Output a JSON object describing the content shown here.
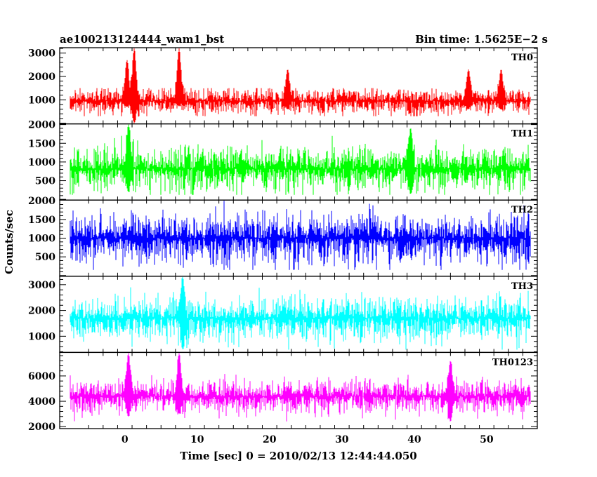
{
  "header": {
    "left": "ae100213124444_wam1_bst",
    "right": "Bin time: 1.5625E−2 s"
  },
  "chart_data": {
    "type": "line",
    "xlabel": "Time [sec] 0 = 2010/02/13 12:44:44.050",
    "ylabel": "Counts/sec",
    "xlim": [
      -9,
      57
    ],
    "data_x_range": [
      -7.5,
      56.0
    ],
    "xticks": [
      0,
      10,
      20,
      30,
      40,
      50
    ],
    "grid": false,
    "panels": [
      {
        "label": "TH0",
        "color": "#ff0000",
        "ylim": [
          0,
          3200
        ],
        "yticks": [
          1000,
          2000,
          3000
        ],
        "baseline": 950,
        "noise": 280,
        "low": 300,
        "high": 1500,
        "features": [
          {
            "x": 0.3,
            "low": 700,
            "high": 2700
          },
          {
            "x": 1.3,
            "low": 0,
            "high": 3200
          },
          {
            "x": 7.5,
            "low": 750,
            "high": 3200
          },
          {
            "x": 22.5,
            "low": 600,
            "high": 2300
          },
          {
            "x": 47.5,
            "low": 600,
            "high": 2300
          },
          {
            "x": 52.0,
            "low": 600,
            "high": 2300
          }
        ]
      },
      {
        "label": "TH1",
        "color": "#00ff00",
        "ylim": [
          0,
          2000
        ],
        "yticks": [
          500,
          1000,
          1500,
          2000
        ],
        "baseline": 820,
        "noise": 300,
        "low": 120,
        "high": 1700,
        "features": [
          {
            "x": 0.5,
            "low": 200,
            "high": 2000
          },
          {
            "x": 39.5,
            "low": 150,
            "high": 1900
          }
        ]
      },
      {
        "label": "TH2",
        "color": "#0000ff",
        "ylim": [
          0,
          2000
        ],
        "yticks": [
          500,
          1000,
          1500,
          2000
        ],
        "baseline": 1000,
        "noise": 330,
        "low": 150,
        "high": 2000,
        "features": []
      },
      {
        "label": "TH3",
        "color": "#00ffff",
        "ylim": [
          400,
          3300
        ],
        "yticks": [
          1000,
          2000,
          3000
        ],
        "baseline": 1700,
        "noise": 420,
        "low": 480,
        "high": 3100,
        "features": [
          {
            "x": 8.0,
            "low": 500,
            "high": 3300
          }
        ]
      },
      {
        "label": "TH0123",
        "color": "#ff00ff",
        "ylim": [
          1900,
          7800
        ],
        "yticks": [
          2000,
          4000,
          6000
        ],
        "baseline": 4400,
        "noise": 650,
        "low": 2300,
        "high": 6800,
        "features": [
          {
            "x": 0.5,
            "low": 2800,
            "high": 7800
          },
          {
            "x": 7.5,
            "low": 3000,
            "high": 7800
          },
          {
            "x": 45.0,
            "low": 2400,
            "high": 7200
          }
        ]
      }
    ]
  }
}
